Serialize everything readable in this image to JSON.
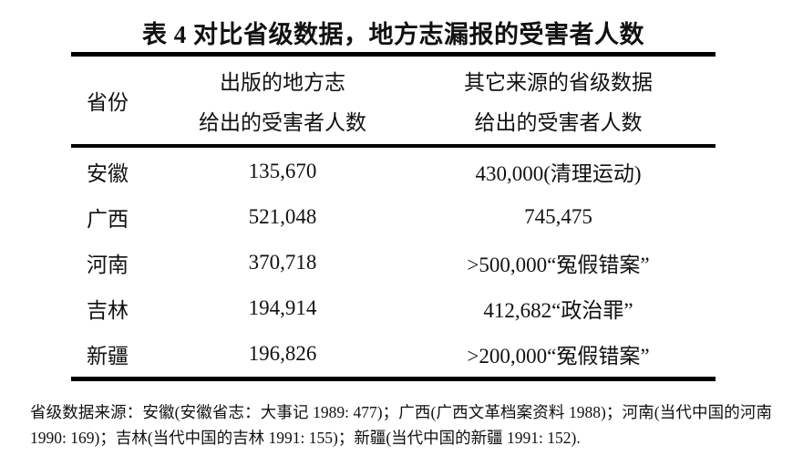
{
  "title": "表 4 对比省级数据，地方志漏报的受害者人数",
  "table": {
    "columns": [
      {
        "line1": "省份",
        "line2": ""
      },
      {
        "line1": "出版的地方志",
        "line2": "给出的受害者人数"
      },
      {
        "line1": "其它来源的省级数据",
        "line2": "给出的受害者人数"
      }
    ],
    "rows": [
      {
        "province": "安徽",
        "gazetteer_victims": "135,670",
        "provincial_victims": "430,000(清理运动)"
      },
      {
        "province": "广西",
        "gazetteer_victims": "521,048",
        "provincial_victims": "745,475"
      },
      {
        "province": "河南",
        "gazetteer_victims": "370,718",
        "provincial_victims": ">500,000“冤假错案”"
      },
      {
        "province": "吉林",
        "gazetteer_victims": "194,914",
        "provincial_victims": "412,682“政治罪”"
      },
      {
        "province": "新疆",
        "gazetteer_victims": "196,826",
        "provincial_victims": ">200,000“冤假错案”"
      }
    ]
  },
  "footnote": "省级数据来源：安徽(安徽省志：大事记 1989: 477)；广西(广西文革档案资料 1988)；河南(当代中国的河南 1990: 169)；吉林(当代中国的吉林 1991: 155)；新疆(当代中国的新疆 1991: 152)."
}
